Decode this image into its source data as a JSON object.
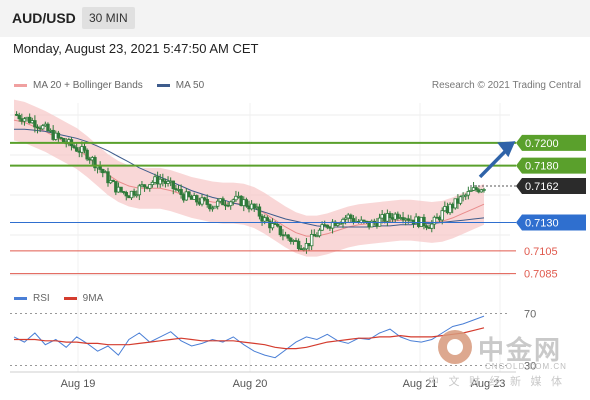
{
  "header": {
    "pair": "AUD/USD",
    "timeframe": "30 MIN"
  },
  "timestamp": "Monday, August 23, 2021 5:47:50 AM CET",
  "legend": {
    "ma20_label": "MA 20 + Bollinger Bands",
    "ma50_label": "MA 50",
    "credit": "Research © 2021 Trading Central"
  },
  "rsi_legend": {
    "rsi_label": "RSI",
    "ma_label": "9MA"
  },
  "watermark": {
    "cn": "中金网",
    "en": "CNGOLD.COM.CN",
    "sub": "中 文 财 经 新 媒 体"
  },
  "colors": {
    "green": "#5aa02c",
    "blue": "#2f6fcf",
    "red": "#e05a4e",
    "candle": "#2f7a3a",
    "band": "#f6c6c6",
    "ma50": "#3e5c8c",
    "tag_dark": "#2b2b2b"
  },
  "chart_data": {
    "type": "candlestick",
    "title": "AUD/USD 30 MIN",
    "x_ticks": [
      "Aug 19",
      "Aug 20",
      "Aug 21",
      "Aug 23"
    ],
    "ylim": [
      0.7075,
      0.7235
    ],
    "levels": [
      {
        "value": 0.72,
        "label": "0.7200",
        "kind": "resistance",
        "color": "#5aa02c"
      },
      {
        "value": 0.718,
        "label": "0.7180",
        "kind": "resistance",
        "color": "#5aa02c"
      },
      {
        "value": 0.7162,
        "label": "0.7162",
        "kind": "last",
        "color": "#2b2b2b"
      },
      {
        "value": 0.713,
        "label": "0.7130",
        "kind": "pivot",
        "color": "#2f6fcf"
      },
      {
        "value": 0.7105,
        "label": "0.7105",
        "kind": "support",
        "color": "#e05a4e"
      },
      {
        "value": 0.7085,
        "label": "0.7085",
        "kind": "support",
        "color": "#e05a4e"
      }
    ],
    "close_path": [
      0.7225,
      0.7222,
      0.7218,
      0.7212,
      0.7205,
      0.72,
      0.7195,
      0.719,
      0.718,
      0.7168,
      0.7158,
      0.7155,
      0.716,
      0.7165,
      0.7168,
      0.7162,
      0.7155,
      0.715,
      0.7148,
      0.7145,
      0.7148,
      0.715,
      0.7148,
      0.7142,
      0.7132,
      0.7125,
      0.7118,
      0.7112,
      0.711,
      0.712,
      0.7128,
      0.7132,
      0.7135,
      0.713,
      0.7128,
      0.7132,
      0.7135,
      0.7138,
      0.7133,
      0.713,
      0.7128,
      0.7138,
      0.7145,
      0.7152,
      0.7158,
      0.7162
    ],
    "ma20": [
      0.722,
      0.7218,
      0.7214,
      0.721,
      0.7205,
      0.72,
      0.7195,
      0.7188,
      0.718,
      0.7172,
      0.7166,
      0.7162,
      0.716,
      0.716,
      0.716,
      0.7158,
      0.7155,
      0.7152,
      0.715,
      0.7148,
      0.7147,
      0.7147,
      0.7146,
      0.7143,
      0.7138,
      0.7132,
      0.7126,
      0.7121,
      0.7118,
      0.7118,
      0.712,
      0.7123,
      0.7126,
      0.7128,
      0.7129,
      0.713,
      0.7131,
      0.7132,
      0.7132,
      0.7131,
      0.713,
      0.7131,
      0.7134,
      0.7138,
      0.7142,
      0.7146
    ],
    "ma50": [
      0.7212,
      0.7212,
      0.7211,
      0.721,
      0.7208,
      0.7206,
      0.7204,
      0.7201,
      0.7197,
      0.7193,
      0.7188,
      0.7183,
      0.7178,
      0.7174,
      0.717,
      0.7166,
      0.7162,
      0.7158,
      0.7155,
      0.7152,
      0.715,
      0.7147,
      0.7145,
      0.7142,
      0.7139,
      0.7136,
      0.7133,
      0.7131,
      0.7129,
      0.7127,
      0.7126,
      0.7126,
      0.7126,
      0.7126,
      0.7126,
      0.7127,
      0.7127,
      0.7128,
      0.7128,
      0.7129,
      0.7129,
      0.713,
      0.7131,
      0.7132,
      0.7133,
      0.7134
    ],
    "band_width": 0.0018,
    "rsi": {
      "ylim": [
        25,
        75
      ],
      "levels": [
        70,
        30
      ],
      "rsi": [
        52,
        48,
        55,
        46,
        50,
        44,
        52,
        47,
        41,
        45,
        38,
        50,
        55,
        48,
        52,
        56,
        49,
        45,
        47,
        50,
        48,
        52,
        46,
        41,
        38,
        36,
        42,
        48,
        52,
        50,
        54,
        49,
        47,
        51,
        50,
        55,
        58,
        52,
        49,
        48,
        50,
        55,
        60,
        62,
        65,
        68
      ],
      "ma9": [
        50,
        50,
        50,
        49,
        49,
        48,
        48,
        47,
        47,
        46,
        46,
        46,
        47,
        48,
        49,
        50,
        51,
        50,
        49,
        49,
        49,
        49,
        48,
        47,
        46,
        44,
        43,
        43,
        44,
        46,
        48,
        49,
        50,
        51,
        51,
        52,
        52,
        53,
        52,
        52,
        52,
        53,
        54,
        55,
        57,
        59
      ]
    }
  }
}
